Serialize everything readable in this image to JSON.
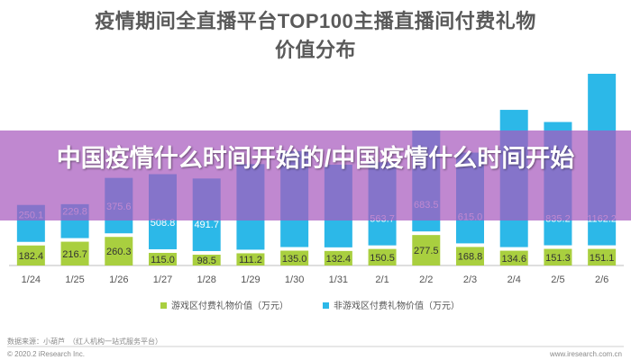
{
  "title": {
    "line1": "疫情期间全直播平台TOP100主播直播间付费礼物",
    "line2": "价值分布"
  },
  "overlay": {
    "text": "中国疫情什么时间开始的/中国疫情什么时间开始"
  },
  "footer": {
    "source": "数据来源：小葫芦　（红人机构一站式服务平台）",
    "copyright_left": "© 2020.2 iResearch Inc.",
    "copyright_right": "www.iresearch.com.cn"
  },
  "chart_data": {
    "type": "bar",
    "stacked": true,
    "categories": [
      "1/24",
      "1/25",
      "1/26",
      "1/27",
      "1/28",
      "1/29",
      "1/30",
      "1/31",
      "2/1",
      "2/2",
      "2/3",
      "2/4",
      "2/5",
      "2/6"
    ],
    "series": [
      {
        "name": "游戏区付费礼物价值（万元）",
        "color": "#a9cf3f",
        "values": [
          182.4,
          216.7,
          260.3,
          115.0,
          98.5,
          111.2,
          135.0,
          132.4,
          150.5,
          277.5,
          168.8,
          134.6,
          151.3,
          151.1
        ]
      },
      {
        "name": "非游戏区付费礼物价值（万元）",
        "color": "#2cb8e8",
        "values": [
          250.1,
          229.8,
          375.6,
          508.8,
          491.7,
          null,
          null,
          null,
          563.7,
          683.5,
          615.0,
          null,
          835.2,
          1162.2
        ]
      }
    ],
    "value_labels": {
      "游戏区付费礼物价值（万元）": [
        "182.4",
        "216.7",
        "260.3",
        "115.0",
        "98.5",
        "111.2",
        "135.0",
        "132.4",
        "150.5",
        "277.5",
        "168.8",
        "134.6",
        "151.3",
        "151.1"
      ],
      "非游戏区付费礼物价值（万元）": [
        "250.1",
        "229.8",
        "375.6",
        "508.8",
        "491.7",
        "",
        "",
        "",
        "563.7",
        "683.5",
        "615.0",
        "",
        "835.2",
        "1162.2"
      ]
    },
    "legend_position": "bottom",
    "grid": false
  }
}
